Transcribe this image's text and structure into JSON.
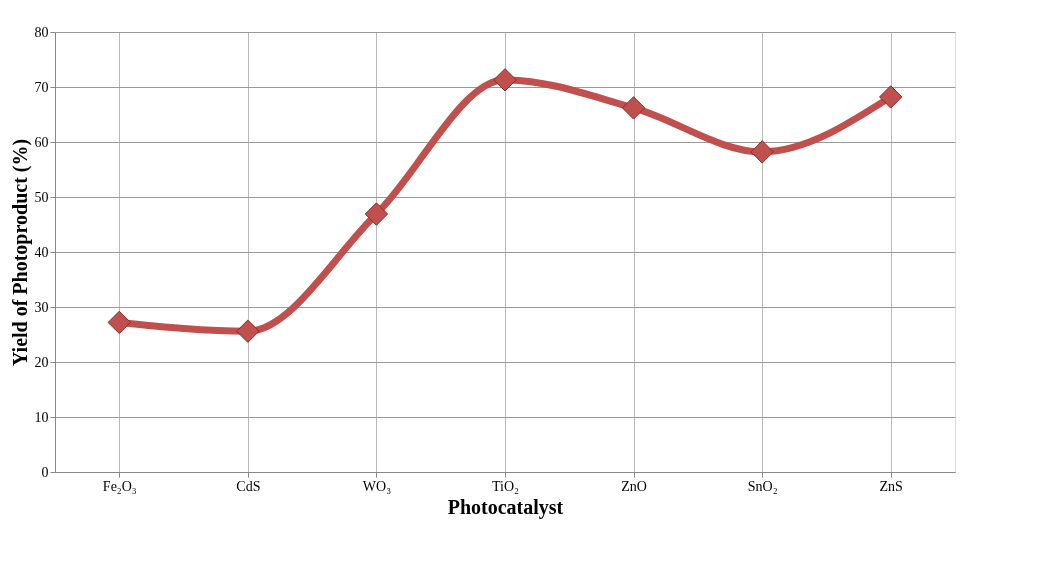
{
  "chart_data": {
    "type": "line",
    "xlabel": "Photocatalyst",
    "ylabel": "Yield of Photoproduct (%)",
    "categories": [
      "Fe₂O₃",
      "CdS",
      "WO₃",
      "TiO₂",
      "ZnO",
      "SnO₂",
      "ZnS"
    ],
    "series": [
      {
        "color": "#c0504d",
        "values": [
          27.2,
          25.6,
          46.9,
          71.3,
          66.2,
          58.2,
          68.2
        ]
      }
    ],
    "ylim": [
      0,
      80
    ],
    "yticks": [
      0,
      10,
      20,
      30,
      40,
      50,
      60,
      70,
      80
    ],
    "grid": true,
    "marker": "diamond",
    "line_style": "solid"
  }
}
